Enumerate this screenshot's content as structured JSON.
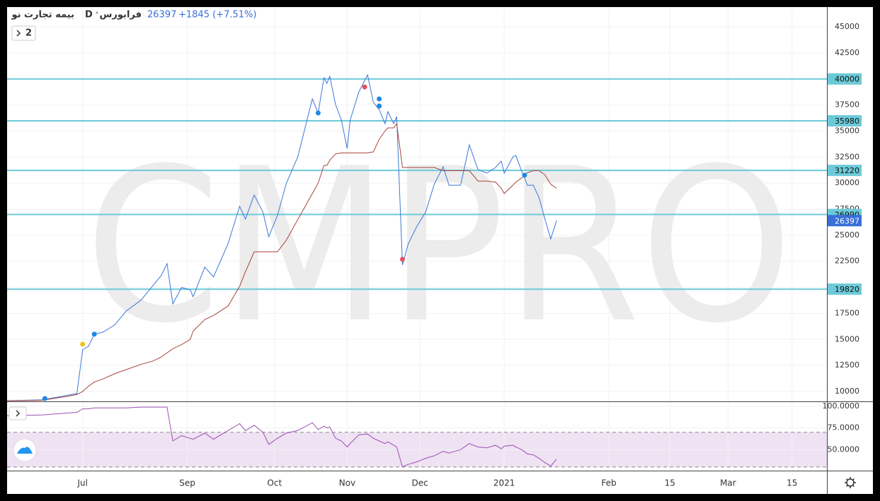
{
  "header": {
    "symbol": "بیمه تجارت نو",
    "interval": "D",
    "exchange": "فرابورس",
    "change": "+1845 (+7.51%)",
    "pane_count": "2",
    "watermark": "CMPRO"
  },
  "chart_data": [
    {
      "type": "line",
      "x": [
        0,
        12,
        20,
        24,
        26,
        28,
        30,
        33,
        37,
        41,
        46,
        50,
        53,
        55,
        57,
        60,
        63,
        64,
        68,
        71,
        76,
        80,
        82,
        85,
        88,
        90,
        93,
        96,
        100,
        105,
        107,
        109,
        110,
        111,
        113,
        115,
        117,
        118,
        121,
        124,
        126,
        128,
        130,
        131,
        133,
        134,
        136,
        138,
        141,
        144,
        147,
        150,
        152,
        156,
        159,
        162,
        165,
        168,
        170,
        171,
        174,
        175,
        177,
        179,
        181,
        183,
        185,
        187,
        189
      ],
      "series": [
        {
          "color": "#3b78d8",
          "values": [
            9120,
            9190,
            9590,
            9800,
            14000,
            14340,
            15500,
            15700,
            16380,
            17730,
            18750,
            20100,
            21120,
            22280,
            18410,
            19970,
            19770,
            19090,
            21940,
            20990,
            24180,
            27770,
            26550,
            28860,
            27230,
            24860,
            26890,
            29940,
            32520,
            38080,
            36730,
            40120,
            39570,
            40250,
            37540,
            36050,
            33330,
            36050,
            38760,
            40390,
            37740,
            37060,
            35710,
            36860,
            35710,
            36390,
            22140,
            24180,
            25870,
            27230,
            29940,
            31570,
            29800,
            29800,
            33670,
            31300,
            30960,
            31500,
            32110,
            30960,
            32520,
            32660,
            31160,
            29800,
            29800,
            28590,
            26550,
            24650,
            26397
          ]
        },
        {
          "color": "#a8443c",
          "values": [
            9100,
            9150,
            9500,
            9700,
            10000,
            10500,
            10900,
            11200,
            11700,
            12100,
            12600,
            12900,
            13300,
            13700,
            14100,
            14500,
            15000,
            15800,
            16900,
            17300,
            18200,
            20100,
            21500,
            23400,
            23400,
            23400,
            23400,
            24500,
            26500,
            29000,
            30000,
            31700,
            31700,
            32200,
            32800,
            32900,
            32900,
            32900,
            32900,
            32900,
            33000,
            34200,
            35000,
            35300,
            35300,
            35700,
            31500,
            31500,
            31500,
            31500,
            31500,
            31200,
            31200,
            31200,
            31200,
            30200,
            30200,
            30100,
            29500,
            29000,
            29800,
            30100,
            30500,
            31000,
            31200,
            31200,
            30800,
            29900,
            29500
          ]
        }
      ],
      "markers": [
        {
          "x": 13,
          "value": 9320,
          "color": "#1e88e5"
        },
        {
          "x": 26,
          "value": 14540,
          "color": "#f2c31b"
        },
        {
          "x": 30,
          "value": 15500,
          "color": "#1e88e5"
        },
        {
          "x": 107,
          "value": 36730,
          "color": "#1e88e5"
        },
        {
          "x": 123,
          "value": 39230,
          "color": "#e8505b"
        },
        {
          "x": 128,
          "value": 38080,
          "color": "#1e88e5"
        },
        {
          "x": 128,
          "value": 37400,
          "color": "#1e88e5"
        },
        {
          "x": 136,
          "value": 22690,
          "color": "#e8505b"
        },
        {
          "x": 178,
          "value": 30760,
          "color": "#1e88e5"
        }
      ],
      "levels": [
        40000,
        35980,
        31220,
        26990,
        19820
      ],
      "level_color": "#6ccad8",
      "last_price": 26397,
      "last_price_color": "#3a6fd8",
      "xlim": [
        0,
        282
      ],
      "ylim": [
        9050,
        46900
      ],
      "yticks": [
        10000,
        12500,
        15000,
        17500,
        20000,
        22500,
        25000,
        27500,
        30000,
        32500,
        35000,
        37500,
        40000,
        42500,
        45000
      ],
      "grid": true
    },
    {
      "type": "line",
      "x": [
        0,
        12,
        20,
        24,
        26,
        28,
        30,
        33,
        37,
        41,
        46,
        50,
        53,
        55,
        57,
        60,
        63,
        64,
        68,
        71,
        76,
        80,
        82,
        85,
        88,
        90,
        93,
        96,
        100,
        105,
        107,
        109,
        110,
        111,
        113,
        115,
        117,
        118,
        121,
        124,
        126,
        128,
        130,
        131,
        133,
        134,
        136,
        138,
        141,
        144,
        147,
        150,
        152,
        156,
        159,
        162,
        165,
        168,
        170,
        171,
        174,
        175,
        177,
        179,
        181,
        183,
        185,
        187,
        189
      ],
      "series": [
        {
          "color": "#9c4fb3",
          "values": [
            89,
            90,
            92,
            93,
            97,
            97,
            98,
            98,
            98,
            98,
            99,
            99,
            99,
            99,
            60,
            66,
            63,
            62,
            69,
            62,
            72,
            80,
            72,
            78,
            70,
            56,
            63,
            69,
            72,
            81,
            73,
            77,
            75,
            76,
            63,
            60,
            53,
            57,
            67,
            68,
            63,
            60,
            57,
            59,
            55,
            53,
            30,
            33,
            36,
            40,
            43,
            48,
            46,
            50,
            57,
            53,
            52,
            55,
            51,
            54,
            55,
            53,
            50,
            45,
            44,
            40,
            35,
            31,
            39
          ]
        }
      ],
      "band": [
        30,
        70
      ],
      "band_color": "#efe2f3",
      "xlim": [
        0,
        282
      ],
      "ylim": [
        25.8,
        104.8
      ],
      "yticks": [
        {
          "value": 50,
          "label": "50.0000"
        },
        {
          "value": 75,
          "label": "75.0000"
        },
        {
          "value": 100,
          "label": "100.0000"
        }
      ],
      "xticks": [
        {
          "value": 26,
          "label": "Jul"
        },
        {
          "value": 62,
          "label": "Sep"
        },
        {
          "value": 92,
          "label": "Oct"
        },
        {
          "value": 117,
          "label": "Nov"
        },
        {
          "value": 142,
          "label": "Dec"
        },
        {
          "value": 171,
          "label": "2021"
        },
        {
          "value": 207,
          "label": "Feb"
        },
        {
          "value": 228,
          "label": "15"
        },
        {
          "value": 248,
          "label": "Mar"
        },
        {
          "value": 270,
          "label": "15"
        }
      ],
      "grid": true
    }
  ]
}
